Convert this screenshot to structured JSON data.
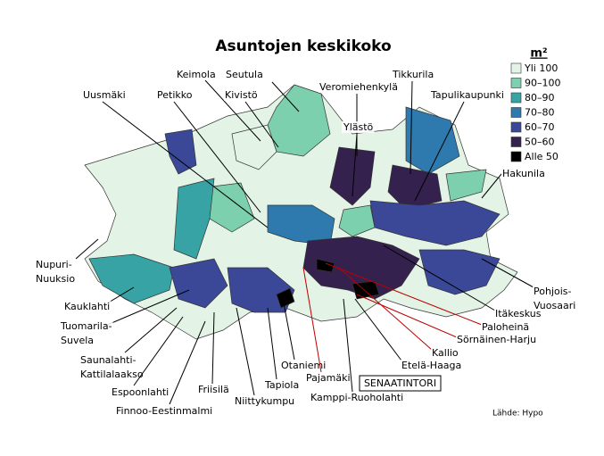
{
  "title": "Asuntojen keskikoko",
  "legend": {
    "title": "m²",
    "items": [
      {
        "label": "Yli 100",
        "color": "#e3f3e6"
      },
      {
        "label": "90–100",
        "color": "#7dd0ad"
      },
      {
        "label": "80–90",
        "color": "#38a3a5"
      },
      {
        "label": "70–80",
        "color": "#2e79ad"
      },
      {
        "label": "60–70",
        "color": "#3b4898"
      },
      {
        "label": "50–60",
        "color": "#35214e"
      },
      {
        "label": "Alle 50",
        "color": "#000000"
      }
    ]
  },
  "places": [
    {
      "lines": [
        "Keimola"
      ]
    },
    {
      "lines": [
        "Seutula"
      ]
    },
    {
      "lines": [
        "Uusmäki"
      ]
    },
    {
      "lines": [
        "Petikko"
      ]
    },
    {
      "lines": [
        "Kivistö"
      ]
    },
    {
      "lines": [
        "Veromiehenkylä"
      ]
    },
    {
      "lines": [
        "Tikkurila"
      ]
    },
    {
      "lines": [
        "Tapulikaupunki"
      ]
    },
    {
      "lines": [
        "Ylästö"
      ]
    },
    {
      "lines": [
        "Hakunila"
      ]
    },
    {
      "lines": [
        "Nupuri-",
        "Nuuksio"
      ]
    },
    {
      "lines": [
        "Kauklahti"
      ]
    },
    {
      "lines": [
        "Tuomarila-",
        "Suvela"
      ]
    },
    {
      "lines": [
        "Saunalahti-",
        "Kattilalaakso"
      ]
    },
    {
      "lines": [
        "Espoonlahti"
      ]
    },
    {
      "lines": [
        "Finnoo-Eestinmalmi"
      ]
    },
    {
      "lines": [
        "Friisilä"
      ]
    },
    {
      "lines": [
        "Niittykumpu"
      ]
    },
    {
      "lines": [
        "Tapiola"
      ]
    },
    {
      "lines": [
        "Otaniemi"
      ]
    },
    {
      "lines": [
        "Pajamäki"
      ]
    },
    {
      "lines": [
        "Kamppi-Ruoholahti"
      ]
    },
    {
      "lines": [
        "Etelä-Haaga"
      ]
    },
    {
      "lines": [
        "Kallio"
      ]
    },
    {
      "lines": [
        "Sörnäinen-Harju"
      ]
    },
    {
      "lines": [
        "Paloheinä"
      ]
    },
    {
      "lines": [
        "Itäkeskus"
      ]
    },
    {
      "lines": [
        "Pohjois-",
        "Vuosaari"
      ]
    }
  ],
  "landmark": "SENAATINTORI",
  "source": "Lähde: Hypo"
}
